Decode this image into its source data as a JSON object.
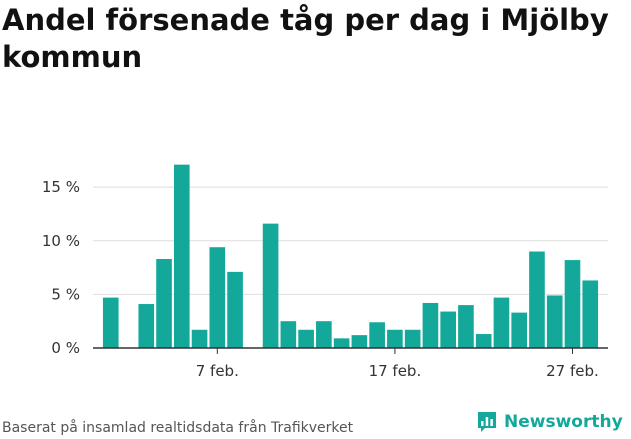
{
  "title": "Andel försenade tåg per dag i Mjölby kommun",
  "source_text": "Baserat på insamlad realtidsdata från Trafikverket",
  "brand": {
    "name": "Newsworthy",
    "icon": "newsworthy-logo-icon",
    "color": "#13a89a"
  },
  "colors": {
    "bar": "#13a89a",
    "grid": "#dddddd",
    "axis": "#333333",
    "text": "#333333"
  },
  "chart_data": {
    "type": "bar",
    "title": "Andel försenade tåg per dag i Mjölby kommun",
    "xlabel": "",
    "ylabel": "",
    "ylim": [
      0,
      18
    ],
    "y_ticks": [
      {
        "value": 0,
        "label": "0 %"
      },
      {
        "value": 5,
        "label": "5 %"
      },
      {
        "value": 10,
        "label": "10 %"
      },
      {
        "value": 15,
        "label": "15 %"
      }
    ],
    "x_ticks": [
      {
        "day": 7,
        "label": "7 feb."
      },
      {
        "day": 17,
        "label": "17 feb."
      },
      {
        "day": 27,
        "label": "27 feb."
      }
    ],
    "x_domain": [
      0,
      29
    ],
    "grid": true,
    "units": "%",
    "days": [
      1,
      2,
      3,
      4,
      5,
      6,
      7,
      8,
      9,
      10,
      11,
      12,
      13,
      14,
      15,
      16,
      17,
      18,
      19,
      20,
      21,
      22,
      23,
      24,
      25,
      26,
      27,
      28
    ],
    "values": [
      4.7,
      null,
      4.1,
      8.3,
      17.1,
      1.7,
      9.4,
      7.1,
      null,
      11.6,
      2.5,
      1.7,
      2.5,
      0.9,
      1.2,
      2.4,
      1.7,
      1.7,
      4.2,
      3.4,
      4.0,
      1.3,
      4.7,
      3.3,
      9.0,
      4.9,
      8.2,
      6.3
    ]
  }
}
